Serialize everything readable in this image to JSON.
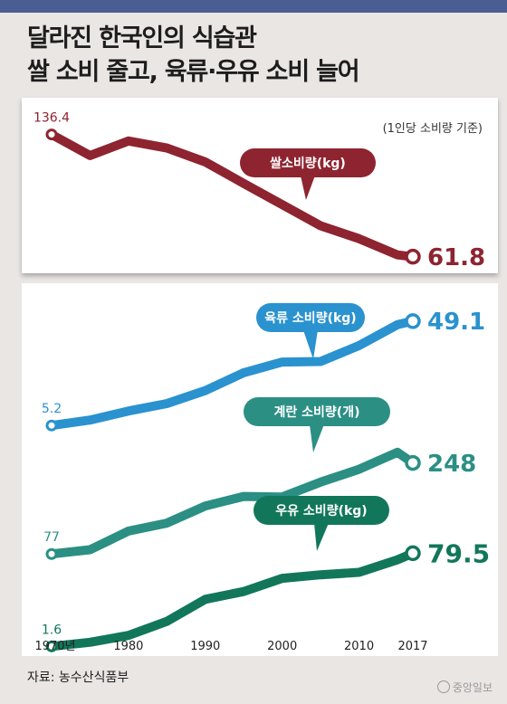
{
  "header": {
    "title_line1": "달라진 한국인의 식습관",
    "title_line2": "쌀 소비 줄고, 육류·우유 소비 늘어"
  },
  "unit_note": "(1인당 소비량 기준)",
  "source": "자료: 농수산식품부",
  "logo_text": "중앙일보",
  "chart_data": {
    "type": "line",
    "x": [
      1970,
      1975,
      1980,
      1985,
      1990,
      1995,
      2000,
      2005,
      2010,
      2015,
      2017
    ],
    "xticks": [
      "1970년",
      "1980",
      "1990",
      "2000",
      "2010",
      "2017"
    ],
    "xtick_values": [
      1970,
      1980,
      1990,
      2000,
      2010,
      2017
    ],
    "xlim": [
      1970,
      2017
    ],
    "grid": false,
    "series": [
      {
        "name": "쌀소비량(kg)",
        "color": "#8e2430",
        "start_label": "136.4",
        "end_label": "61.8",
        "values": [
          136.4,
          123.5,
          132.4,
          128.1,
          119.6,
          106.5,
          93.6,
          80.7,
          72.8,
          62.9,
          61.8
        ],
        "ylim": [
          55,
          145
        ]
      },
      {
        "name": "육류 소비량(kg)",
        "color": "#2a92cf",
        "start_label": "5.2",
        "end_label": "49.1",
        "values": [
          5.2,
          7.5,
          11.3,
          14.4,
          19.9,
          27.4,
          31.9,
          32.1,
          38.8,
          47.6,
          49.1
        ],
        "ylim": [
          -5,
          62
        ]
      },
      {
        "name": "계란 소비량(개)",
        "color": "#2b8f84",
        "start_label": "77",
        "end_label": "248",
        "values": [
          77,
          85,
          120,
          135,
          167,
          185,
          184,
          212,
          236,
          268,
          248
        ],
        "ylim": [
          40,
          480
        ]
      },
      {
        "name": "우유 소비량(kg)",
        "color": "#12775a",
        "start_label": "1.6",
        "end_label": "79.5",
        "values": [
          1.6,
          5,
          10.8,
          22.5,
          41,
          47.5,
          58.5,
          61.5,
          63.5,
          74,
          79.5
        ],
        "ylim": [
          -8,
          132
        ]
      }
    ]
  }
}
